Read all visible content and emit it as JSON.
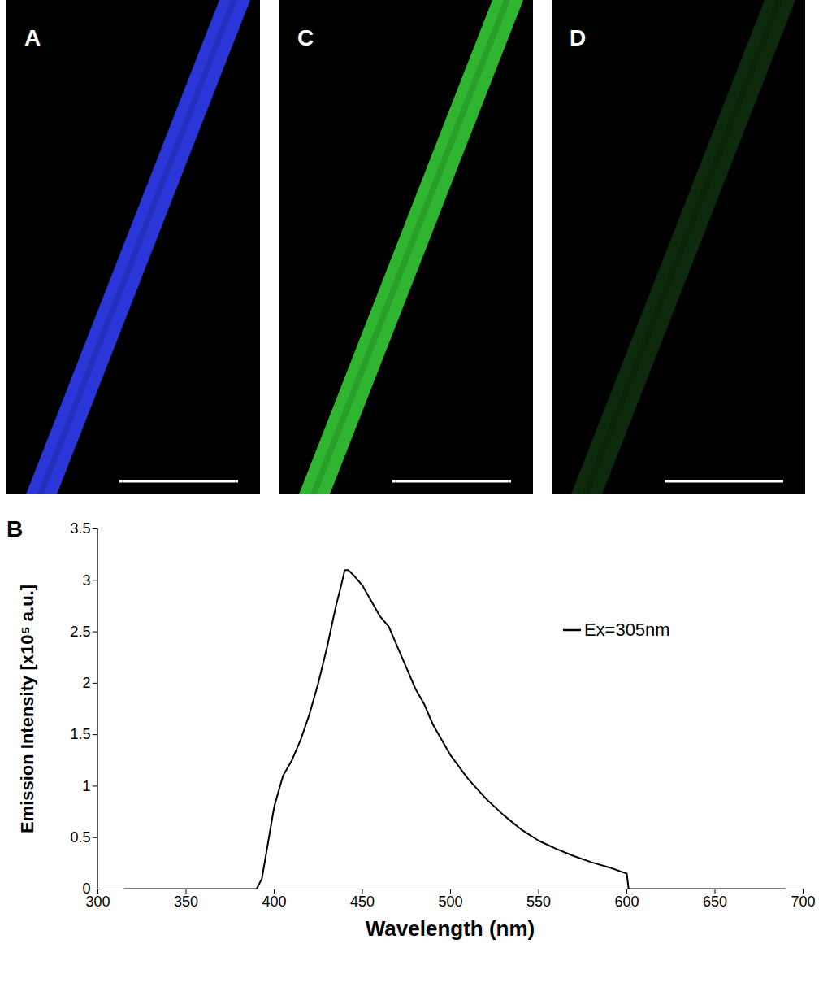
{
  "chart_data": {
    "type": "line",
    "title": "B",
    "x_label": "Wavelength (nm)",
    "y_label": "Emission Intensity [x10⁵ a.u.]",
    "x": [
      315,
      390,
      393,
      396,
      400,
      405,
      410,
      415,
      420,
      425,
      430,
      435,
      438,
      440,
      442,
      445,
      450,
      455,
      460,
      465,
      470,
      475,
      480,
      485,
      490,
      495,
      500,
      510,
      520,
      530,
      540,
      550,
      560,
      570,
      580,
      590,
      600,
      601,
      690
    ],
    "series": [
      {
        "name": "Ex=305nm",
        "color": "#000000",
        "values": [
          0,
          0,
          0.1,
          0.4,
          0.8,
          1.1,
          1.25,
          1.45,
          1.7,
          2.0,
          2.35,
          2.75,
          2.95,
          3.1,
          3.1,
          3.05,
          2.95,
          2.8,
          2.65,
          2.55,
          2.35,
          2.15,
          1.95,
          1.8,
          1.6,
          1.45,
          1.3,
          1.07,
          0.88,
          0.72,
          0.58,
          0.47,
          0.39,
          0.32,
          0.26,
          0.21,
          0.15,
          0,
          0
        ]
      }
    ],
    "xlim": [
      300,
      700
    ],
    "xticks": [
      300,
      350,
      400,
      450,
      500,
      550,
      600,
      650,
      700
    ],
    "ylim": [
      0,
      3.5
    ],
    "yticks": [
      0,
      0.5,
      1,
      1.5,
      2,
      2.5,
      3,
      3.5
    ],
    "grid": false,
    "legend": "upper right"
  },
  "image_panels": [
    {
      "label": "A",
      "color": "#2b36d9"
    },
    {
      "label": "C",
      "color": "#2fb52f"
    },
    {
      "label": "D",
      "color": "#0d2a0d"
    }
  ]
}
